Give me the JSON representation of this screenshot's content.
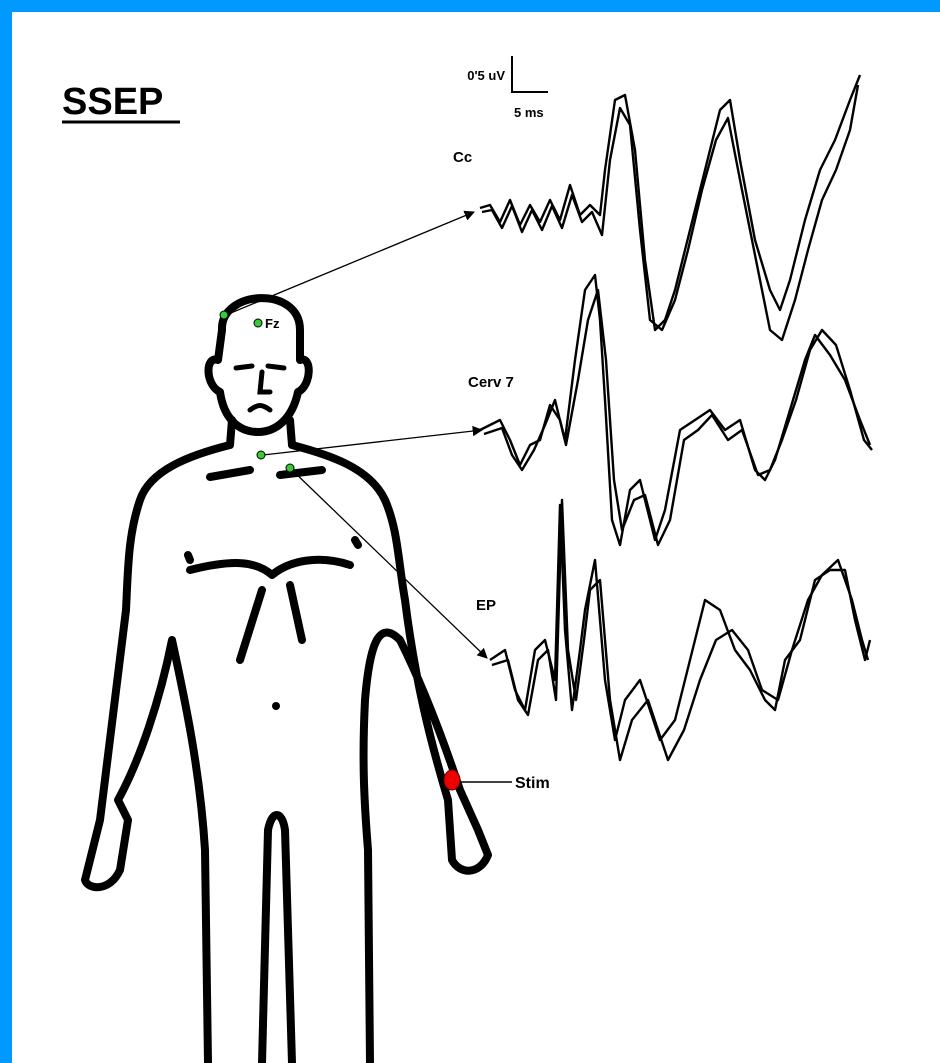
{
  "title": "SSEP",
  "scale": {
    "amplitude": "0'5 uV",
    "time": "5 ms"
  },
  "traces": [
    {
      "label": "Cc"
    },
    {
      "label": "Cerv 7"
    },
    {
      "label": "EP"
    }
  ],
  "electrodes": [
    {
      "label": "Fz"
    },
    {
      "label": "Stim"
    }
  ]
}
